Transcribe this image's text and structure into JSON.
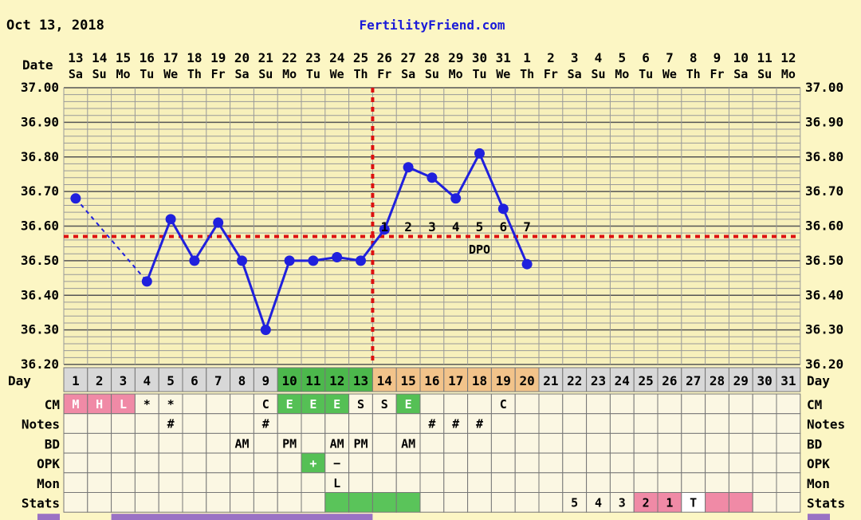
{
  "header": {
    "date": "Oct 13, 2018",
    "site": "FertilityFriend.com"
  },
  "labels": {
    "date_row": "Date",
    "day_row": "Day",
    "dpo": "DPO"
  },
  "colors": {
    "background": "#fcf6c4",
    "plot_background": "#f7f0bb",
    "grid": "#999999",
    "line": "#2020dd",
    "coverline": "#dd1111",
    "day_normal": "#d8d8d8",
    "day_fertile": "#4cb84c",
    "day_luteal": "#f2c38a",
    "cm_red": "#f08aa6",
    "cm_green": "#55c055",
    "stats_green": "#5ac45a",
    "stats_pink": "#f08aa6",
    "stats_white": "#ffffff",
    "cell": "#fbf7e3",
    "bottom_bar": "#9a72c4"
  },
  "chart_data": {
    "type": "line",
    "title": "",
    "ylabel": "",
    "xlabel": "Day",
    "ylim": [
      36.2,
      37.0
    ],
    "y_ticks": [
      "36.20",
      "36.30",
      "36.40",
      "36.50",
      "36.60",
      "36.70",
      "36.80",
      "36.90",
      "37.00"
    ],
    "dates": [
      "13",
      "14",
      "15",
      "16",
      "17",
      "18",
      "19",
      "20",
      "21",
      "22",
      "23",
      "24",
      "25",
      "26",
      "27",
      "28",
      "29",
      "30",
      "31",
      "1",
      "2",
      "3",
      "4",
      "5",
      "6",
      "7",
      "8",
      "9",
      "10",
      "11",
      "12"
    ],
    "weekdays": [
      "Sa",
      "Su",
      "Mo",
      "Tu",
      "We",
      "Th",
      "Fr",
      "Sa",
      "Su",
      "Mo",
      "Tu",
      "We",
      "Th",
      "Fr",
      "Sa",
      "Su",
      "Mo",
      "Tu",
      "We",
      "Th",
      "Fr",
      "Sa",
      "Su",
      "Mo",
      "Tu",
      "We",
      "Th",
      "Fr",
      "Sa",
      "Su",
      "Mo"
    ],
    "cycle_days": [
      "1",
      "2",
      "3",
      "4",
      "5",
      "6",
      "7",
      "8",
      "9",
      "10",
      "11",
      "12",
      "13",
      "14",
      "15",
      "16",
      "17",
      "18",
      "19",
      "20",
      "21",
      "22",
      "23",
      "24",
      "25",
      "26",
      "27",
      "28",
      "29",
      "30",
      "31"
    ],
    "temperatures": [
      36.68,
      null,
      null,
      36.44,
      36.62,
      36.5,
      36.61,
      36.5,
      36.3,
      36.5,
      36.5,
      36.51,
      36.5,
      36.59,
      36.77,
      36.74,
      36.68,
      36.81,
      36.65,
      36.49
    ],
    "dashed_segments": [
      [
        1,
        4
      ]
    ],
    "coverline": 36.57,
    "ovulation_day": 13,
    "dpo_labels": [
      "1",
      "2",
      "3",
      "4",
      "5",
      "6",
      "7"
    ],
    "dpo_start_day": 14,
    "grid": true,
    "legend": "none"
  },
  "day_colors": [
    "normal",
    "normal",
    "normal",
    "normal",
    "normal",
    "normal",
    "normal",
    "normal",
    "normal",
    "fertile",
    "fertile",
    "fertile",
    "fertile",
    "luteal",
    "luteal",
    "luteal",
    "luteal",
    "luteal",
    "luteal",
    "luteal",
    "normal",
    "normal",
    "normal",
    "normal",
    "normal",
    "normal",
    "normal",
    "normal",
    "normal",
    "normal",
    "normal"
  ],
  "rows": [
    {
      "label": "CM",
      "cells": {
        "1": {
          "text": "M",
          "bg": "cm_red"
        },
        "2": {
          "text": "H",
          "bg": "cm_red"
        },
        "3": {
          "text": "L",
          "bg": "cm_red"
        },
        "4": {
          "text": "*"
        },
        "5": {
          "text": "*"
        },
        "9": {
          "text": "C"
        },
        "10": {
          "text": "E",
          "bg": "cm_green"
        },
        "11": {
          "text": "E",
          "bg": "cm_green"
        },
        "12": {
          "text": "E",
          "bg": "cm_green"
        },
        "13": {
          "text": "S"
        },
        "14": {
          "text": "S"
        },
        "15": {
          "text": "E",
          "bg": "cm_green"
        },
        "19": {
          "text": "C"
        }
      }
    },
    {
      "label": "Notes",
      "cells": {
        "5": {
          "text": "#"
        },
        "9": {
          "text": "#"
        },
        "16": {
          "text": "#"
        },
        "17": {
          "text": "#"
        },
        "18": {
          "text": "#"
        }
      }
    },
    {
      "label": "BD",
      "cells": {
        "8": {
          "text": "AM"
        },
        "10": {
          "text": "PM"
        },
        "12": {
          "text": "AM"
        },
        "13": {
          "text": "PM"
        },
        "15": {
          "text": "AM"
        }
      }
    },
    {
      "label": "OPK",
      "cells": {
        "11": {
          "text": "+",
          "bg": "cm_green"
        },
        "12": {
          "text": "−"
        }
      }
    },
    {
      "label": "Mon",
      "cells": {
        "12": {
          "text": "L"
        }
      }
    },
    {
      "label": "Stats",
      "cells": {
        "12": {
          "text": "",
          "bg": "stats_green"
        },
        "13": {
          "text": "",
          "bg": "stats_green"
        },
        "14": {
          "text": "",
          "bg": "stats_green"
        },
        "15": {
          "text": "",
          "bg": "stats_green"
        },
        "22": {
          "text": "5"
        },
        "23": {
          "text": "4"
        },
        "24": {
          "text": "3"
        },
        "25": {
          "text": "2",
          "bg": "stats_pink"
        },
        "26": {
          "text": "1",
          "bg": "stats_pink"
        },
        "27": {
          "text": "T",
          "bg": "stats_white"
        },
        "28": {
          "text": "",
          "bg": "stats_pink"
        },
        "29": {
          "text": "",
          "bg": "stats_pink"
        }
      }
    }
  ]
}
